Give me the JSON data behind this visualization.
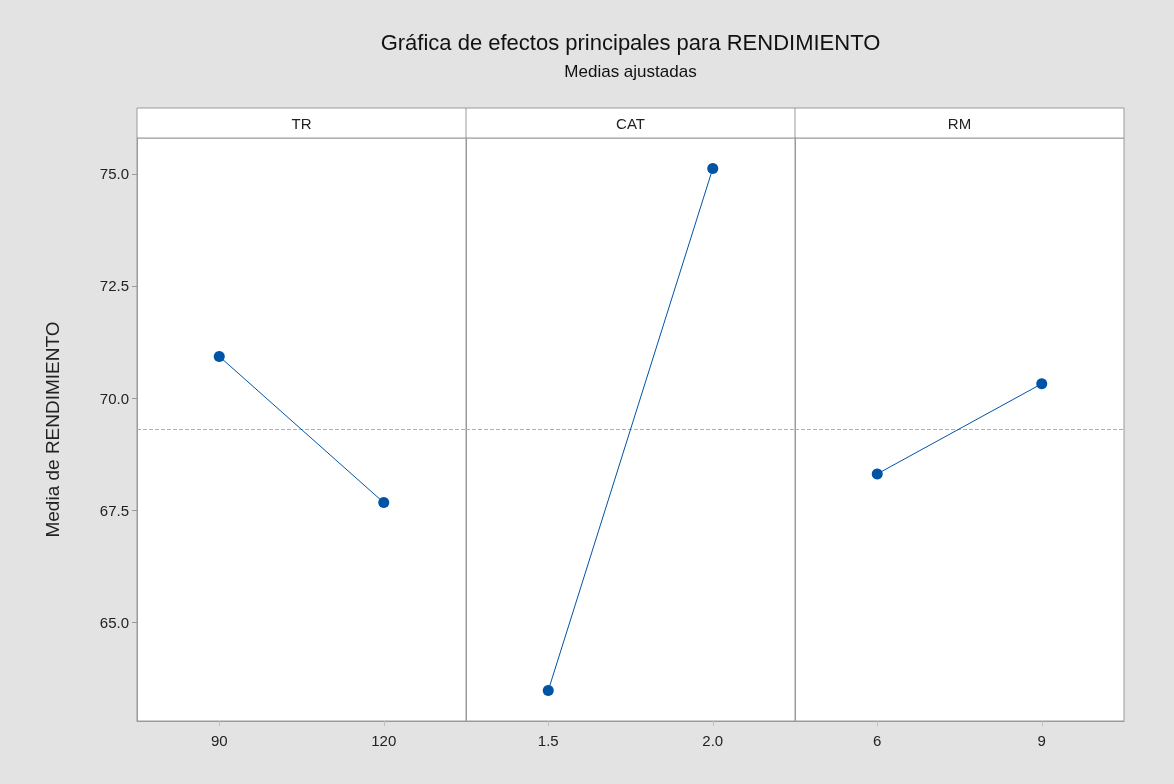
{
  "chart_data": [
    {
      "type": "line",
      "xlabel": "TR",
      "ylabel": "Media de RENDIMIENTO",
      "categories": [
        "90",
        "120"
      ],
      "series": [
        {
          "color": "#0054a6",
          "values": [
            70.93,
            67.67
          ]
        }
      ],
      "ylim": [
        62.8,
        75.8
      ],
      "yticks": [
        {
          "value": 65,
          "label": "65.0"
        },
        {
          "value": 67.5,
          "label": "67.5"
        },
        {
          "value": 70,
          "label": "70.0"
        },
        {
          "value": 72.5,
          "label": "72.5"
        },
        {
          "value": 75,
          "label": "75.0"
        }
      ],
      "ref_lines": [
        {
          "axis": "y",
          "value": 69.3,
          "color": "#b0b0b0",
          "line_style": "dashed"
        }
      ],
      "marker": "circle"
    },
    {
      "type": "line",
      "title": "Gráfica de efectos principales para RENDIMIENTO",
      "subtitle": "Medias ajustadas",
      "xlabel": "CAT",
      "categories": [
        "1.5",
        "2.0"
      ],
      "series": [
        {
          "color": "#0054a6",
          "values": [
            63.48,
            75.12
          ]
        }
      ],
      "ylim": [
        62.8,
        75.8
      ],
      "ref_lines": [
        {
          "axis": "y",
          "value": 69.3,
          "color": "#b0b0b0",
          "line_style": "dashed"
        }
      ],
      "marker": "circle",
      "tick_labels": "x"
    },
    {
      "type": "line",
      "xlabel": "RM",
      "categories": [
        "6",
        "9"
      ],
      "series": [
        {
          "color": "#0054a6",
          "values": [
            68.31,
            70.32
          ]
        }
      ],
      "ylim": [
        62.8,
        75.8
      ],
      "ref_lines": [
        {
          "axis": "y",
          "value": 69.3,
          "color": "#b0b0b0",
          "line_style": "dashed"
        }
      ],
      "marker": "circle",
      "tick_labels": "x"
    }
  ]
}
